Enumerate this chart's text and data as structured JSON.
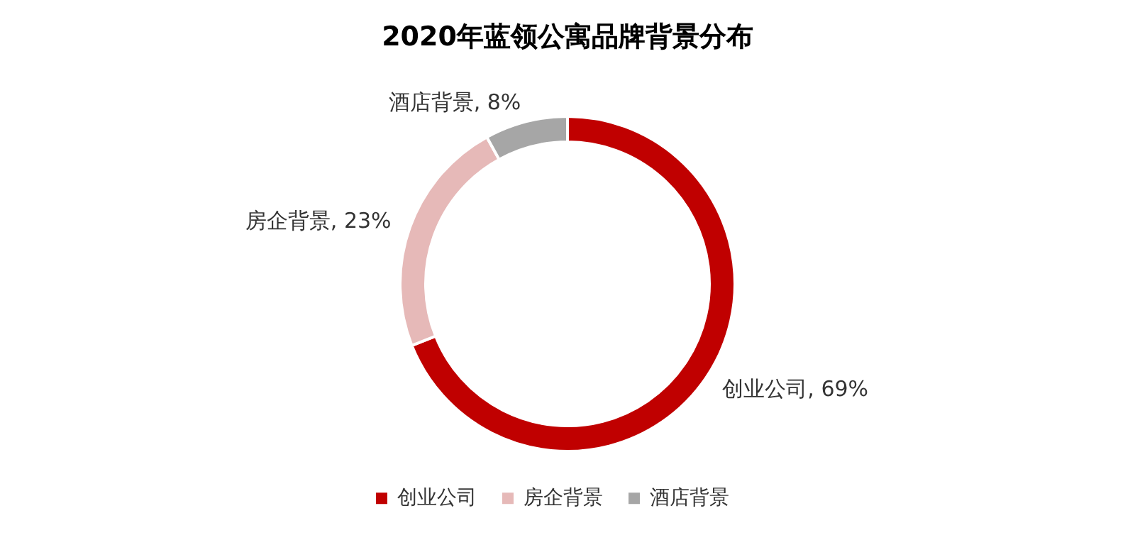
{
  "chart_data": {
    "type": "donut",
    "title": "2020年蓝领公寓品牌背景分布",
    "categories": [
      "创业公司",
      "房企背景",
      "酒店背景"
    ],
    "values": [
      69,
      23,
      8
    ],
    "value_labels": [
      "创业公司, 69%",
      "房企背景, 23%",
      "酒店背景, 8%"
    ],
    "colors": [
      "#c00000",
      "#e6b9b8",
      "#a6a6a6"
    ],
    "legend": "bottom"
  }
}
